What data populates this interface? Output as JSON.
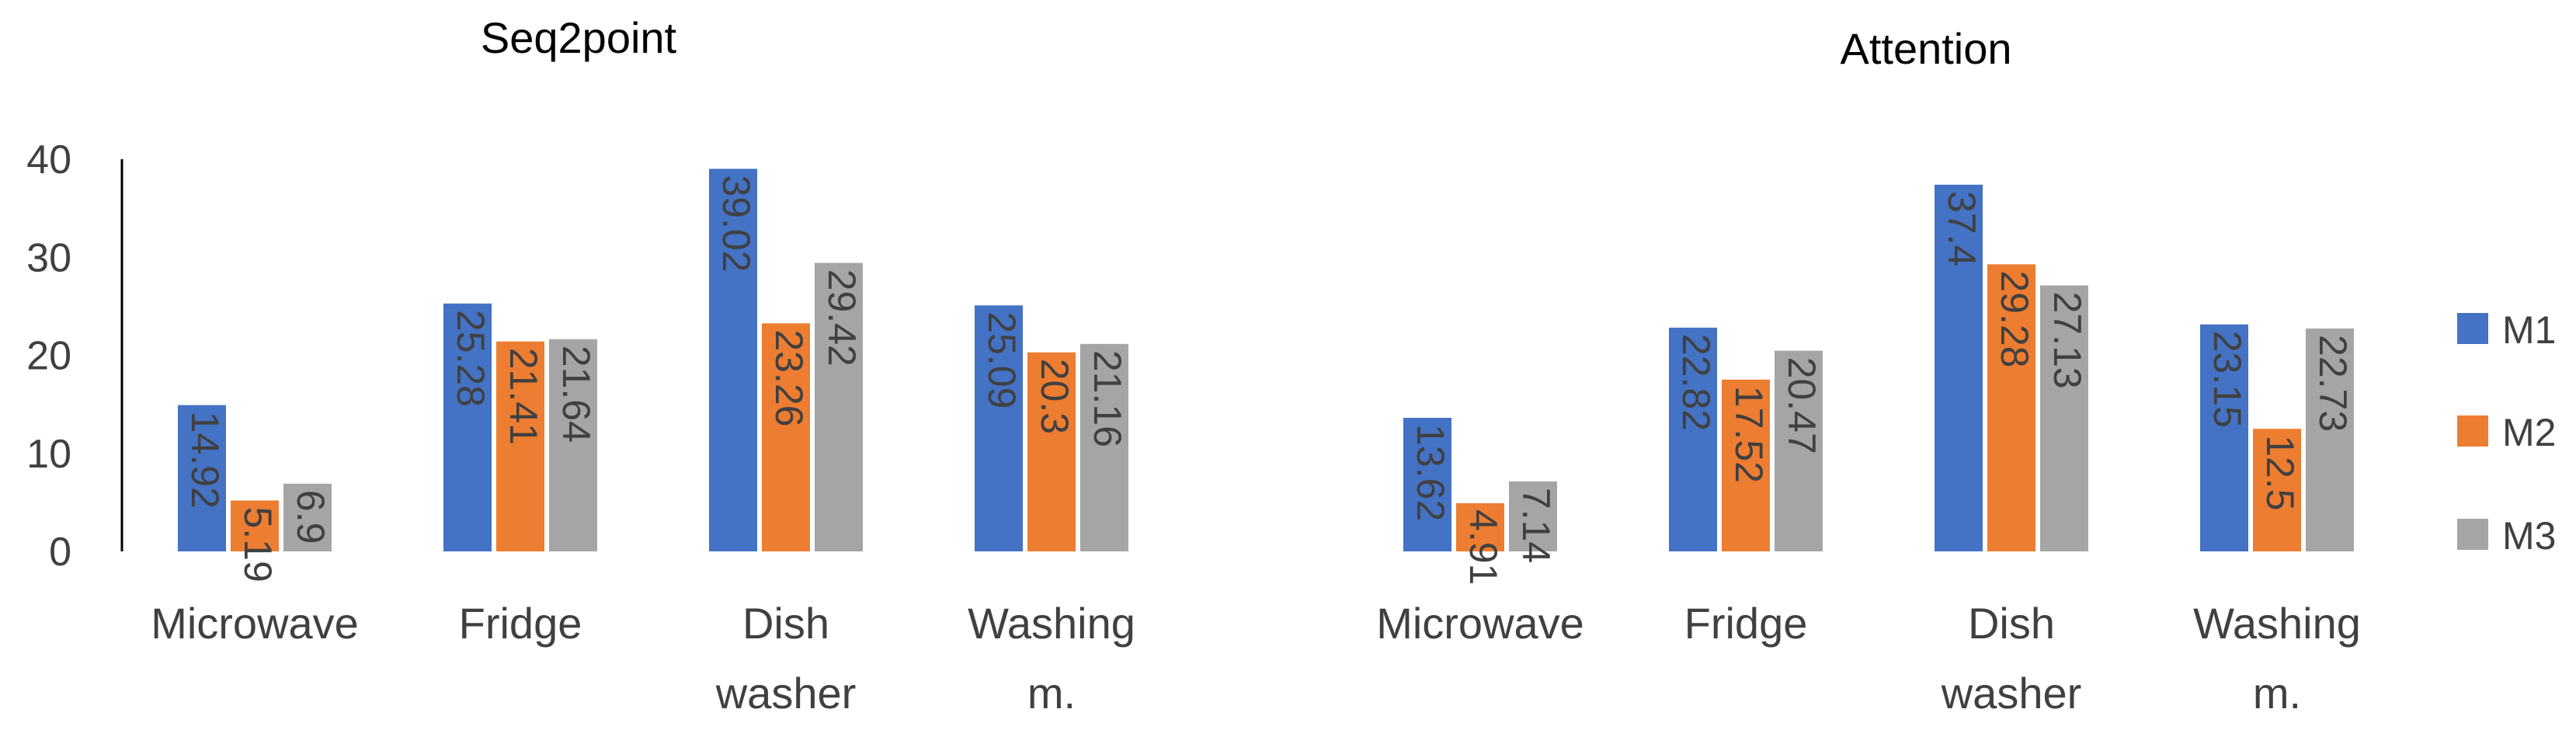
{
  "chart_data": [
    {
      "type": "bar",
      "title": "Seq2point",
      "categories": [
        "Microwave",
        "Fridge",
        "Dish washer",
        "Washing m."
      ],
      "category_lines": [
        [
          "Microwave"
        ],
        [
          "Fridge"
        ],
        [
          "Dish",
          "washer"
        ],
        [
          "Washing",
          "m."
        ]
      ],
      "series": [
        {
          "name": "M1",
          "values": [
            14.92,
            25.28,
            39.02,
            25.09
          ]
        },
        {
          "name": "M2",
          "values": [
            5.19,
            21.41,
            23.26,
            20.3
          ]
        },
        {
          "name": "M3",
          "values": [
            6.9,
            21.64,
            29.42,
            21.16
          ]
        }
      ],
      "value_labels": [
        [
          "14.92",
          "25.28",
          "39.02",
          "25.09"
        ],
        [
          "5.19",
          "21.41",
          "23.26",
          "20.3"
        ],
        [
          "6.9",
          "21.64",
          "29.42",
          "21.16"
        ]
      ],
      "yticks": [
        "0",
        "10",
        "20",
        "30",
        "40"
      ],
      "ylim": [
        0,
        40
      ],
      "xlabel": "",
      "ylabel": "",
      "grid": false
    },
    {
      "type": "bar",
      "title": "Attention",
      "categories": [
        "Microwave",
        "Fridge",
        "Dish washer",
        "Washing m."
      ],
      "category_lines": [
        [
          "Microwave"
        ],
        [
          "Fridge"
        ],
        [
          "Dish",
          "washer"
        ],
        [
          "Washing",
          "m."
        ]
      ],
      "series": [
        {
          "name": "M1",
          "values": [
            13.62,
            22.82,
            37.4,
            23.15
          ]
        },
        {
          "name": "M2",
          "values": [
            4.91,
            17.52,
            29.28,
            12.5
          ]
        },
        {
          "name": "M3",
          "values": [
            7.14,
            20.47,
            27.13,
            22.73
          ]
        }
      ],
      "value_labels": [
        [
          "13.62",
          "22.82",
          "37.4",
          "23.15"
        ],
        [
          "4.91",
          "17.52",
          "29.28",
          "12.5"
        ],
        [
          "7.14",
          "20.47",
          "27.13",
          "22.73"
        ]
      ],
      "ylim": [
        0,
        40
      ],
      "xlabel": "",
      "ylabel": "",
      "grid": false
    }
  ],
  "legend": {
    "placement": "right",
    "items": [
      {
        "name": "M1",
        "color": "#4472C4"
      },
      {
        "name": "M2",
        "color": "#ED7D31"
      },
      {
        "name": "M3",
        "color": "#A5A5A5"
      }
    ]
  }
}
